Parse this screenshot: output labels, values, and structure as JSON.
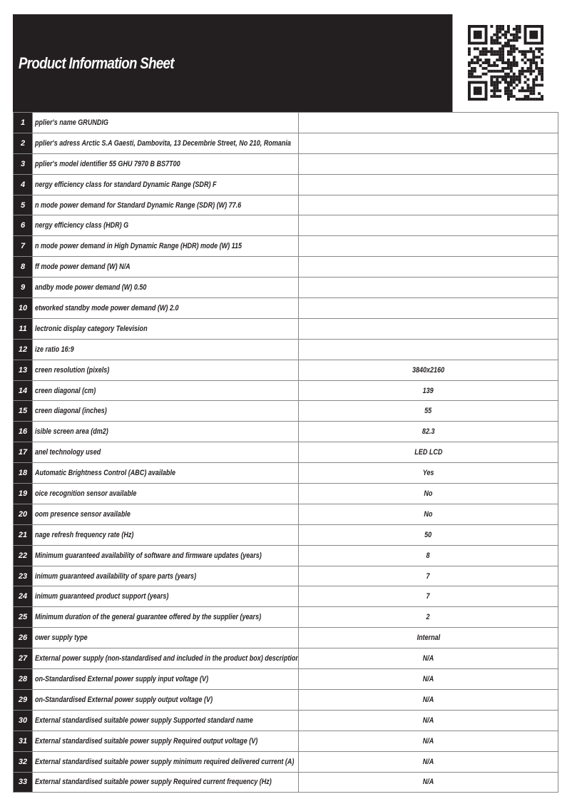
{
  "header": {
    "title": "Product Information Sheet",
    "qr_icon": "qr-code"
  },
  "rows": [
    {
      "n": "1",
      "label": "pplier's name  GRUNDIG",
      "value": ""
    },
    {
      "n": "2",
      "label": "pplier's adress Arctic S.A  Gaesti, Dambovita, 13 Decembrie Street, No 210, Romania",
      "value": ""
    },
    {
      "n": "3",
      "label": "pplier's model identifier 55 GHU 7970 B BS7T00",
      "value": ""
    },
    {
      "n": "4",
      "label": "nergy efficiency class for standard Dynamic Range (SDR) F",
      "value": ""
    },
    {
      "n": "5",
      "label": "n mode power demand for Standard Dynamic Range (SDR) (W) 77.6",
      "value": ""
    },
    {
      "n": "6",
      "label": "nergy efficiency class (HDR) G",
      "value": ""
    },
    {
      "n": "7",
      "label": "n mode power demand in High Dynamic Range (HDR) mode  (W) 115",
      "value": ""
    },
    {
      "n": "8",
      "label": "ff mode power demand (W) N/A",
      "value": ""
    },
    {
      "n": "9",
      "label": "andby mode power demand  (W) 0.50",
      "value": ""
    },
    {
      "n": "10",
      "label": "etworked standby mode power demand (W) 2.0",
      "value": ""
    },
    {
      "n": "11",
      "label": "lectronic display category Television",
      "value": ""
    },
    {
      "n": "12",
      "label": "ize ratio 16:9",
      "value": ""
    },
    {
      "n": "13",
      "label": "creen resolution (pixels)",
      "value": "3840x2160"
    },
    {
      "n": "14",
      "label": "creen diagonal (cm)",
      "value": "139"
    },
    {
      "n": "15",
      "label": "creen diagonal (inches)",
      "value": "55"
    },
    {
      "n": "16",
      "label": "isible screen area (dm2)",
      "value": "82.3"
    },
    {
      "n": "17",
      "label": "anel technology used",
      "value": "LED LCD"
    },
    {
      "n": "18",
      "label": " Automatic Brightness Control (ABC) available",
      "value": "Yes"
    },
    {
      "n": "19",
      "label": "oice recognition sensor available",
      "value": "No"
    },
    {
      "n": "20",
      "label": "oom presence sensor available",
      "value": "No"
    },
    {
      "n": "21",
      "label": "nage refresh frequency rate (Hz)",
      "value": "50"
    },
    {
      "n": "22",
      "label": " Minimum guaranteed availability of software and firmware updates (years)",
      "value": "8"
    },
    {
      "n": "23",
      "label": "inimum guaranteed availability of spare parts (years)",
      "value": "7"
    },
    {
      "n": "24",
      "label": "inimum guaranteed product support (years)",
      "value": "7"
    },
    {
      "n": "25",
      "label": " Minimum duration of the general guarantee offered by the supplier (years)",
      "value": "2"
    },
    {
      "n": "26",
      "label": "ower supply type",
      "value": "Internal"
    },
    {
      "n": "27",
      "label": " External power supply (non-standardised and included in the product box) description",
      "value": "N/A"
    },
    {
      "n": "28",
      "label": "on-Standardised External power supply input voltage (V)",
      "value": "N/A"
    },
    {
      "n": "29",
      "label": "on-Standardised External power supply output voltage (V)",
      "value": "N/A"
    },
    {
      "n": "30",
      "label": " External standardised suitable power supply Supported standard name",
      "value": "N/A"
    },
    {
      "n": "31",
      "label": " External standardised suitable power supply Required output voltage (V)",
      "value": "N/A"
    },
    {
      "n": "32",
      "label": " External standardised suitable  power supply minimum required delivered current  (A)",
      "value": "N/A"
    },
    {
      "n": "33",
      "label": " External standardised suitable power supply Required current frequency (Hz)",
      "value": "N/A"
    }
  ]
}
